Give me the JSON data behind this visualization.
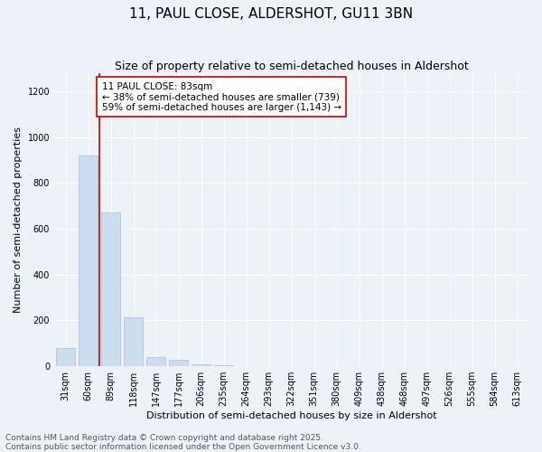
{
  "title": "11, PAUL CLOSE, ALDERSHOT, GU11 3BN",
  "subtitle": "Size of property relative to semi-detached houses in Aldershot",
  "xlabel": "Distribution of semi-detached houses by size in Aldershot",
  "ylabel": "Number of semi-detached properties",
  "categories": [
    "31sqm",
    "60sqm",
    "89sqm",
    "118sqm",
    "147sqm",
    "177sqm",
    "206sqm",
    "235sqm",
    "264sqm",
    "293sqm",
    "322sqm",
    "351sqm",
    "380sqm",
    "409sqm",
    "438sqm",
    "468sqm",
    "497sqm",
    "526sqm",
    "555sqm",
    "584sqm",
    "613sqm"
  ],
  "values": [
    80,
    920,
    670,
    215,
    40,
    28,
    10,
    5,
    0,
    0,
    0,
    0,
    0,
    0,
    0,
    0,
    0,
    0,
    0,
    0,
    0
  ],
  "bar_color": "#ccddf0",
  "bar_edge_color": "#aabfd8",
  "bar_width": 0.85,
  "ylim": [
    0,
    1280
  ],
  "yticks": [
    0,
    200,
    400,
    600,
    800,
    1000,
    1200
  ],
  "vline_x": 1.5,
  "vline_color": "#cc0000",
  "annotation_text": "11 PAUL CLOSE: 83sqm\n← 38% of semi-detached houses are smaller (739)\n59% of semi-detached houses are larger (1,143) →",
  "annotation_box_color": "#ffffff",
  "annotation_box_edge": "#cc0000",
  "footer_line1": "Contains HM Land Registry data © Crown copyright and database right 2025.",
  "footer_line2": "Contains public sector information licensed under the Open Government Licence v3.0.",
  "background_color": "#edf2f9",
  "grid_color": "#ffffff",
  "title_fontsize": 11,
  "subtitle_fontsize": 9,
  "axis_label_fontsize": 8,
  "tick_fontsize": 7,
  "annotation_fontsize": 7.5,
  "footer_fontsize": 6.5
}
